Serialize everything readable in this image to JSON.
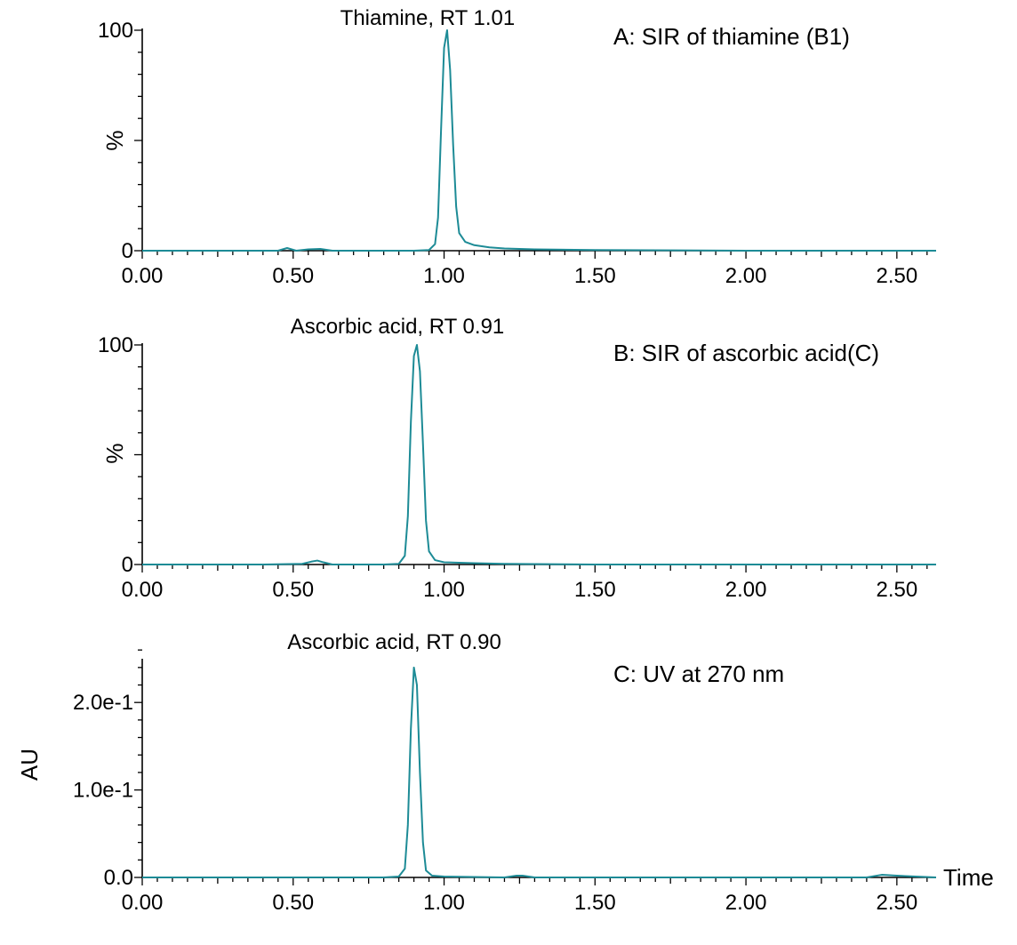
{
  "chart_data": [
    {
      "type": "line",
      "panel": "A",
      "title": "A: SIR of thiamine (B1)",
      "annotation": "Thiamine, RT 1.01",
      "peak_rt": 1.01,
      "ylabel": "%",
      "xlabel": "",
      "xlim": [
        0.0,
        2.63
      ],
      "ylim": [
        0,
        100
      ],
      "xticks": [
        "0.00",
        "0.50",
        "1.00",
        "1.50",
        "2.00",
        "2.50"
      ],
      "yticks": [
        "0",
        "100"
      ],
      "color": "#1d8b96",
      "series": [
        {
          "x": [
            0.0,
            0.3,
            0.45,
            0.48,
            0.51,
            0.55,
            0.59,
            0.63,
            0.7,
            0.8,
            0.9,
            0.95,
            0.97,
            0.98,
            0.99,
            1.0,
            1.01,
            1.02,
            1.03,
            1.04,
            1.05,
            1.07,
            1.1,
            1.15,
            1.2,
            1.3,
            1.5,
            2.0,
            2.63
          ],
          "y": [
            0,
            0,
            0,
            1.2,
            0,
            0.6,
            0.8,
            0,
            0,
            0,
            0,
            0.3,
            3,
            15,
            55,
            92,
            100,
            82,
            48,
            20,
            8,
            4,
            2.5,
            1.5,
            1,
            0.6,
            0.3,
            0,
            0
          ]
        }
      ]
    },
    {
      "type": "line",
      "panel": "B",
      "title": "B: SIR of ascorbic acid(C)",
      "annotation": "Ascorbic acid, RT 0.91",
      "peak_rt": 0.91,
      "ylabel": "%",
      "xlabel": "",
      "xlim": [
        0.0,
        2.63
      ],
      "ylim": [
        0,
        100
      ],
      "xticks": [
        "0.00",
        "0.50",
        "1.00",
        "1.50",
        "2.00",
        "2.50"
      ],
      "yticks": [
        "0",
        "100"
      ],
      "color": "#1d8b96",
      "series": [
        {
          "x": [
            0.0,
            0.4,
            0.53,
            0.56,
            0.58,
            0.6,
            0.63,
            0.7,
            0.8,
            0.85,
            0.87,
            0.88,
            0.89,
            0.9,
            0.91,
            0.92,
            0.93,
            0.94,
            0.95,
            0.97,
            1.0,
            1.05,
            1.1,
            1.2,
            1.5,
            2.63
          ],
          "y": [
            0,
            0,
            0.3,
            1.3,
            1.8,
            1,
            0,
            0,
            0,
            0.3,
            4,
            22,
            65,
            95,
            100,
            88,
            55,
            20,
            6,
            2,
            1,
            0.8,
            0.6,
            0.3,
            0,
            0
          ]
        }
      ]
    },
    {
      "type": "line",
      "panel": "C",
      "title": "C: UV at 270 nm",
      "annotation": "Ascorbic acid, RT 0.90",
      "peak_rt": 0.9,
      "ylabel": "AU",
      "xlabel": "Time",
      "xlim": [
        0.0,
        2.63
      ],
      "ylim": [
        0,
        0.25
      ],
      "xticks": [
        "0.00",
        "0.50",
        "1.00",
        "1.50",
        "2.00",
        "2.50"
      ],
      "yticks": [
        "0.0",
        "1.0e-1",
        "2.0e-1"
      ],
      "color": "#1d8b96",
      "series": [
        {
          "x": [
            0.0,
            0.8,
            0.85,
            0.87,
            0.88,
            0.89,
            0.9,
            0.91,
            0.92,
            0.93,
            0.94,
            0.96,
            1.0,
            1.2,
            1.24,
            1.26,
            1.3,
            2.4,
            2.45,
            2.5,
            2.63
          ],
          "y": [
            0,
            0,
            0.001,
            0.01,
            0.06,
            0.17,
            0.24,
            0.22,
            0.12,
            0.04,
            0.008,
            0.002,
            0.001,
            0,
            0.002,
            0.002,
            0,
            0,
            0.003,
            0.002,
            0
          ]
        }
      ]
    }
  ]
}
